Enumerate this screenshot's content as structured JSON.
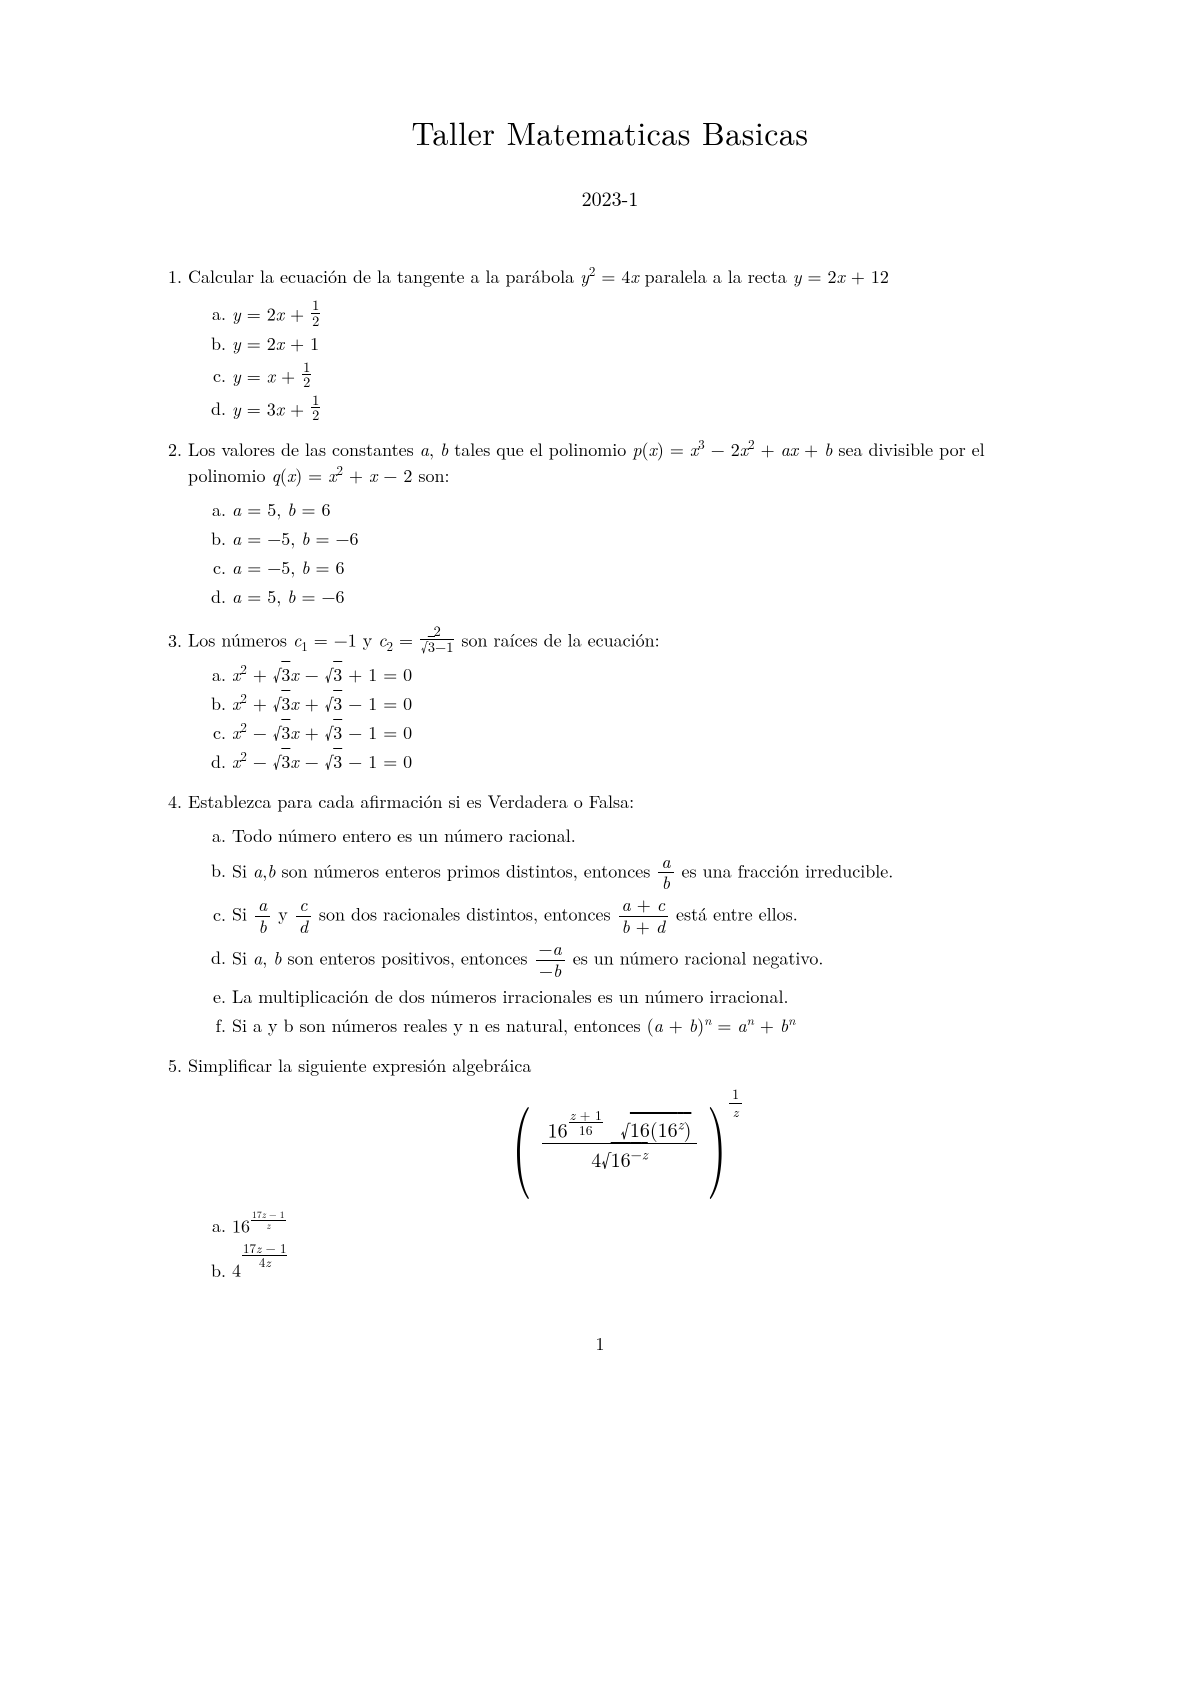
{
  "typography": {
    "body_fontsize": 18,
    "h1_fontsize": 32,
    "text_color": "#000000",
    "background_color": "#ffffff"
  },
  "title": "Taller Matematicas Basicas",
  "subtitle": "2023-1",
  "page_number": "1",
  "problems": [
    {
      "stem_html": "Calcular la ecuación de la tangente a la parábola <span class='math'>y</span><sup>2</sup> = 4<span class='math'>x</span> paralela a la recta <span class='math'>y</span> = 2<span class='math'>x</span> + 12",
      "options": [
        "<span class='math'>y</span> = 2<span class='math'>x</span> + <span class='sfrac'><span class='num'>1</span><span class='den'>2</span></span>",
        "<span class='math'>y</span> = 2<span class='math'>x</span> + 1",
        "<span class='math'>y</span> = <span class='math'>x</span> + <span class='sfrac'><span class='num'>1</span><span class='den'>2</span></span>",
        "<span class='math'>y</span> = 3<span class='math'>x</span> + <span class='sfrac'><span class='num'>1</span><span class='den'>2</span></span>"
      ]
    },
    {
      "stem_html": "Los valores de las constantes <span class='math'>a</span>, <span class='math'>b</span> tales que el polinomio <span class='math'>p</span>(<span class='math'>x</span>) = <span class='math'>x</span><sup>3</sup> − 2<span class='math'>x</span><sup>2</sup> + <span class='math'>ax</span> + <span class='math'>b</span> sea divisible por el polinomio <span class='math'>q</span>(<span class='math'>x</span>) = <span class='math'>x</span><sup>2</sup> + <span class='math'>x</span> − 2 son:",
      "options": [
        "<span class='math'>a</span> = 5, <span class='math'>b</span> = 6",
        "<span class='math'>a</span> = −5, <span class='math'>b</span> = −6",
        "<span class='math'>a</span> = −5, <span class='math'>b</span> = 6",
        "<span class='math'>a</span> = 5, <span class='math'>b</span> = −6"
      ]
    },
    {
      "stem_html": "Los números <span class='math'>c</span><sub>1</sub> = −1 y <span class='math'>c</span><sub>2</sub> = <span class='sfrac'><span class='num'>2</span><span class='den'>√<span style=\"text-decoration:overline\">3</span>−1</span></span> son raíces de la ecuación:",
      "options": [
        "<span class='math'>x</span><sup>2</sup> + √<span style='text-decoration:overline'>3</span><span class='math'>x</span> − √<span style='text-decoration:overline'>3</span> + 1 = 0",
        "<span class='math'>x</span><sup>2</sup> + √<span style='text-decoration:overline'>3</span><span class='math'>x</span> + √<span style='text-decoration:overline'>3</span> − 1 = 0",
        "<span class='math'>x</span><sup>2</sup> − √<span style='text-decoration:overline'>3</span><span class='math'>x</span> + √<span style='text-decoration:overline'>3</span> − 1 = 0",
        "<span class='math'>x</span><sup>2</sup> − √<span style='text-decoration:overline'>3</span><span class='math'>x</span> − √<span style='text-decoration:overline'>3</span> − 1 = 0"
      ]
    },
    {
      "stem_html": "Establezca para cada afirmación si es Verdadera o Falsa:",
      "options": [
        "Todo número entero es un número racional.",
        "Si <span class='math'>a</span>,<span class='math'>b</span> son números enteros primos distintos, entonces <span class='frac'><span class='num'><span class='math'>a</span></span><span class='den'><span class='math'>b</span></span></span> es una fracción irreducible.",
        "Si <span class='frac'><span class='num'><span class='math'>a</span></span><span class='den'><span class='math'>b</span></span></span> y <span class='frac'><span class='num'><span class='math'>c</span></span><span class='den'><span class='math'>d</span></span></span> son dos racionales distintos, entonces <span class='frac'><span class='num'><span class='math'>a</span> + <span class='math'>c</span></span><span class='den'><span class='math'>b</span> + <span class='math'>d</span></span></span> está entre ellos.",
        "Si <span class='math'>a</span>, <span class='math'>b</span> son enteros positivos, entonces <span class='frac'><span class='num'>−<span class='math'>a</span></span><span class='den'>−<span class='math'>b</span></span></span> es un número racional negativo.",
        "La multiplicación de dos números irracionales es un número irracional.",
        "Si a y b son números reales y n es natural, entonces (<span class='math'>a</span> + <span class='math'>b</span>)<sup><span class='math'>n</span></sup> = <span class='math'>a</span><sup><span class='math'>n</span></sup> + <span class='math'>b</span><sup><span class='math'>n</span></sup>"
      ]
    },
    {
      "stem_html": "Simplificar la siguiente expresión algebráica",
      "display_expr": {
        "inner_num_html": "16<sup><span class='sfrac' style='font-size:0.95em'><span class='num'><span class='math'>z</span> + 1</span><span class='den'>16</span></span></sup> &nbsp;√<span style='text-decoration:overline'>16(16<sup><span class='math'>z</span></sup>)</span>",
        "inner_den_html": "4√<span style='text-decoration:overline'>16<sup>−<span class='math'>z</span></sup></span>",
        "outer_exp_html": "<span class='frac' style='font-size:14px'><span class='num'>1</span><span class='den'><span class='math'>z</span></span></span>"
      },
      "options": [
        "16<sup><span class='sfrac' style='font-size:0.75em'><span class='num'>17<span class=\"math\">z</span> − 1</span><span class='den'><span class=\"math\">z</span></span></span></sup>",
        "4<sup><span class='sfrac' style='font-size:1em;vertical-align:0.2em'><span class='num'>17<span class=\"math\">z</span> − 1</span><span class='den'>4<span class=\"math\">z</span></span></span></sup>"
      ]
    }
  ]
}
